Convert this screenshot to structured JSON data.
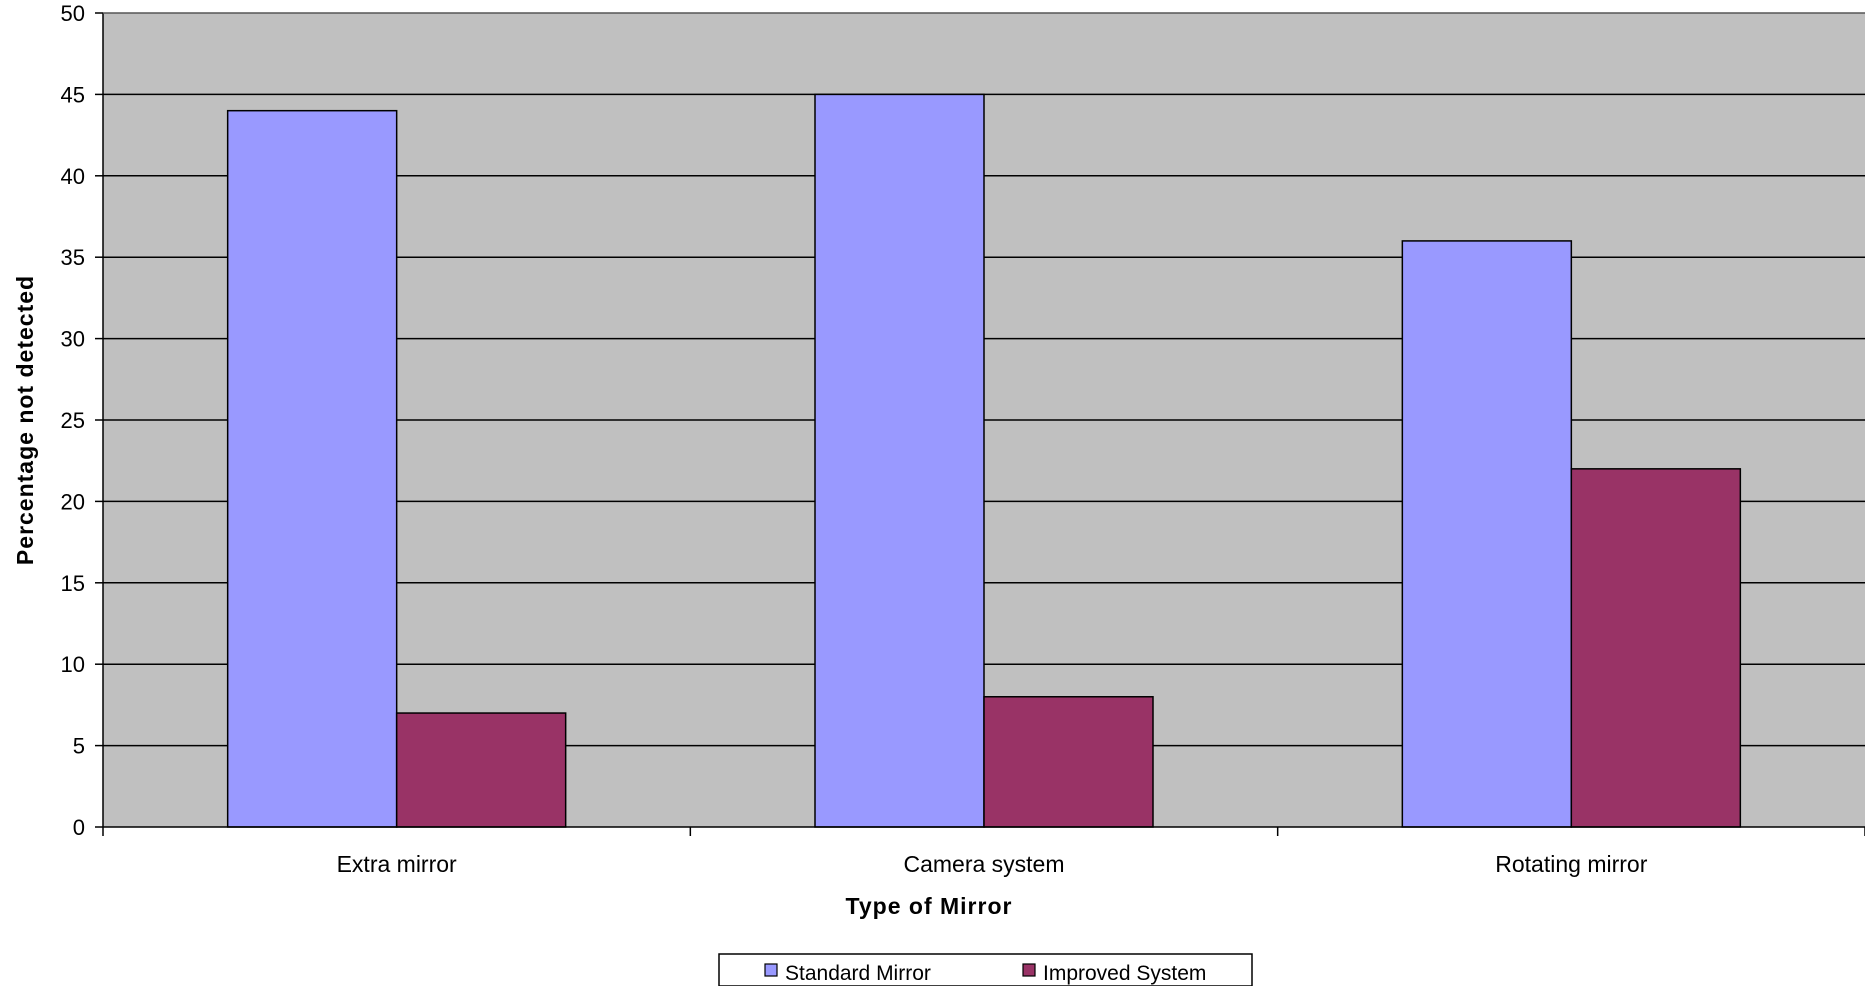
{
  "chart_data": {
    "type": "bar",
    "title": "",
    "xlabel": "Type of Mirror",
    "ylabel": "Percentage not detected",
    "categories": [
      "Extra mirror",
      "Camera system",
      "Rotating mirror"
    ],
    "series": [
      {
        "name": "Standard Mirror",
        "values": [
          44,
          45,
          36
        ],
        "color": "#9999ff"
      },
      {
        "name": "Improved System",
        "values": [
          7,
          8,
          22
        ],
        "color": "#993366"
      }
    ],
    "ylim": [
      0,
      50
    ],
    "yticks": [
      0,
      5,
      10,
      15,
      20,
      25,
      30,
      35,
      40,
      45,
      50
    ],
    "grid": true,
    "plot_background": "#c0c0c0",
    "legend_position": "bottom"
  }
}
